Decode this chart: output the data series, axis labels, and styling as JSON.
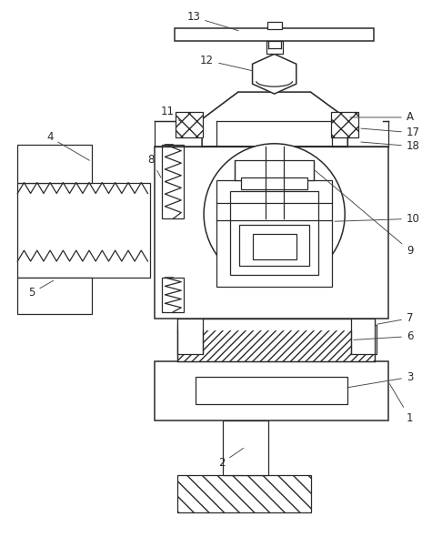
{
  "background_color": "#ffffff",
  "line_color": "#2a2a2a",
  "figsize": [
    4.86,
    5.9
  ],
  "dpi": 100,
  "label_fs": 8.5
}
